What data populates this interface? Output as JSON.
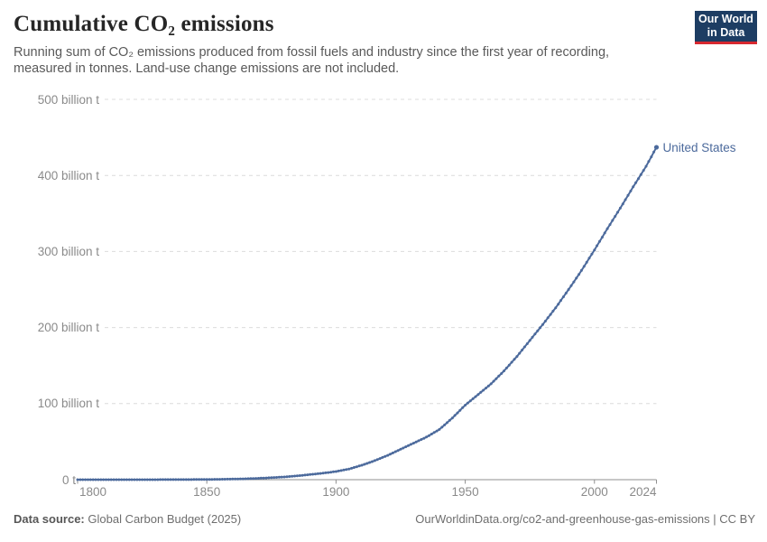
{
  "header": {
    "title": "Cumulative CO₂ emissions",
    "subtitle": "Running sum of CO₂ emissions produced from fossil fuels and industry since the first year of recording, measured in tonnes. Land-use change emissions are not included.",
    "logo": {
      "line1": "Our World",
      "line2": "in Data"
    }
  },
  "chart_data": {
    "type": "line",
    "title": "Cumulative CO₂ emissions",
    "unit": "billion t",
    "xlim": [
      1800,
      2024
    ],
    "ylim": [
      0,
      500
    ],
    "grid": "dashed-horizontal",
    "x_ticks": [
      1800,
      1850,
      1900,
      1950,
      2000,
      2024
    ],
    "x_tick_labels": [
      "1800",
      "1850",
      "1900",
      "1950",
      "2000",
      "2024"
    ],
    "y_ticks": [
      0,
      100,
      200,
      300,
      400,
      500
    ],
    "y_tick_labels": [
      "0 t",
      "100 billion t",
      "200 billion t",
      "300 billion t",
      "400 billion t",
      "500 billion t"
    ],
    "series": [
      {
        "name": "United States",
        "color": "#4c6a9c",
        "x": [
          1800,
          1805,
          1810,
          1815,
          1820,
          1825,
          1830,
          1835,
          1840,
          1845,
          1850,
          1855,
          1860,
          1865,
          1870,
          1875,
          1880,
          1885,
          1890,
          1895,
          1900,
          1905,
          1910,
          1915,
          1920,
          1925,
          1930,
          1935,
          1940,
          1945,
          1950,
          1955,
          1960,
          1965,
          1970,
          1975,
          1980,
          1985,
          1990,
          1995,
          2000,
          2005,
          2010,
          2015,
          2020,
          2024
        ],
        "values": [
          0,
          0.005,
          0.01,
          0.015,
          0.02,
          0.03,
          0.05,
          0.08,
          0.12,
          0.19,
          0.3,
          0.5,
          0.8,
          1.2,
          1.8,
          2.6,
          3.6,
          5.0,
          6.8,
          8.6,
          10.7,
          14,
          19,
          25,
          32,
          40,
          48,
          56,
          66,
          81,
          98,
          112,
          126,
          143,
          162,
          183,
          204,
          226,
          250,
          275,
          302,
          330,
          357,
          385,
          412,
          437
        ]
      }
    ]
  },
  "footer": {
    "source_label": "Data source:",
    "source_value": "Global Carbon Budget (2025)",
    "attribution": "OurWorldinData.org/co2-and-greenhouse-gas-emissions | CC BY"
  },
  "colors": {
    "line": "#4c6a9c",
    "logo_navy": "#1d3d63",
    "logo_red": "#d7282f",
    "gridline": "#dcdcdc",
    "axis": "#8f8f8f",
    "axis_text": "#8a8a8a"
  }
}
